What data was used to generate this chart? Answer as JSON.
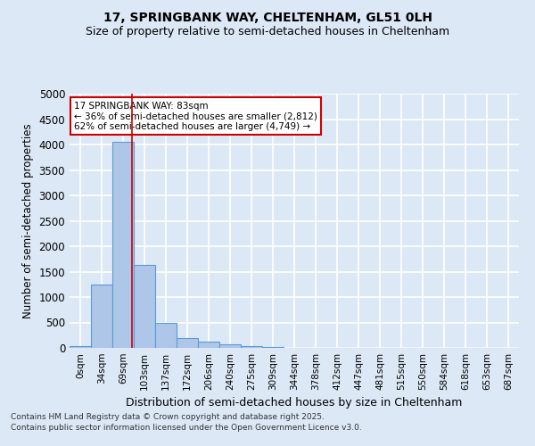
{
  "title_line1": "17, SPRINGBANK WAY, CHELTENHAM, GL51 0LH",
  "title_line2": "Size of property relative to semi-detached houses in Cheltenham",
  "xlabel": "Distribution of semi-detached houses by size in Cheltenham",
  "ylabel": "Number of semi-detached properties",
  "bin_labels": [
    "0sqm",
    "34sqm",
    "69sqm",
    "103sqm",
    "137sqm",
    "172sqm",
    "206sqm",
    "240sqm",
    "275sqm",
    "309sqm",
    "344sqm",
    "378sqm",
    "412sqm",
    "447sqm",
    "481sqm",
    "515sqm",
    "550sqm",
    "584sqm",
    "618sqm",
    "653sqm",
    "687sqm"
  ],
  "bin_values": [
    40,
    1250,
    4050,
    1640,
    490,
    195,
    120,
    65,
    35,
    20,
    8,
    5,
    3,
    2,
    1,
    1,
    0,
    0,
    0,
    0,
    0
  ],
  "bar_color": "#aec6e8",
  "bar_edgecolor": "#5b9bd5",
  "red_line_x": 2.42,
  "annotation_title": "17 SPRINGBANK WAY: 83sqm",
  "annotation_line2": "← 36% of semi-detached houses are smaller (2,812)",
  "annotation_line3": "62% of semi-detached houses are larger (4,749) →",
  "annotation_box_color": "#ffffff",
  "annotation_box_edgecolor": "#cc0000",
  "ylim": [
    0,
    5000
  ],
  "yticks": [
    0,
    500,
    1000,
    1500,
    2000,
    2500,
    3000,
    3500,
    4000,
    4500,
    5000
  ],
  "bg_color": "#dce8f5",
  "plot_bg_color": "#dce8f5",
  "grid_color": "#ffffff",
  "footer_line1": "Contains HM Land Registry data © Crown copyright and database right 2025.",
  "footer_line2": "Contains public sector information licensed under the Open Government Licence v3.0."
}
